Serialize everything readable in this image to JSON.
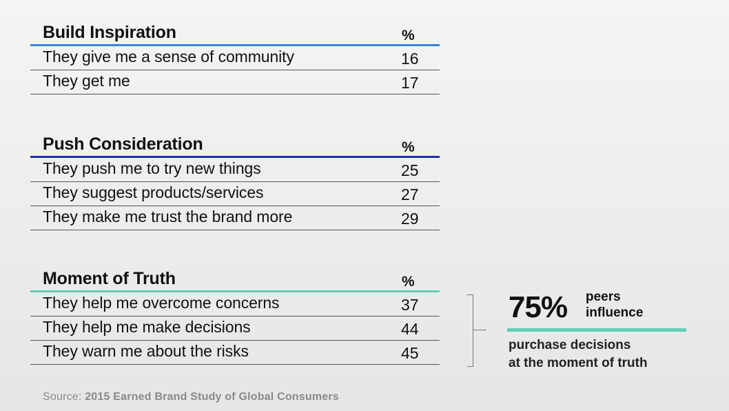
{
  "sections": [
    {
      "title": "Build Inspiration",
      "pct_header": "%",
      "accent": "#3d82d8",
      "rows": [
        {
          "label": "They give me a sense of community",
          "value": "16"
        },
        {
          "label": "They get me",
          "value": "17"
        }
      ]
    },
    {
      "title": "Push Consideration",
      "pct_header": "%",
      "accent": "#1f2ea0",
      "rows": [
        {
          "label": "They push me to try new things",
          "value": "25"
        },
        {
          "label": "They suggest products/services",
          "value": "27"
        },
        {
          "label": "They make me trust the brand more",
          "value": "29"
        }
      ]
    },
    {
      "title": "Moment of Truth",
      "pct_header": "%",
      "accent": "#5fd0b4",
      "rows": [
        {
          "label": "They help me overcome concerns",
          "value": "37"
        },
        {
          "label": "They help me make decisions",
          "value": "44"
        },
        {
          "label": "They warn me about the risks",
          "value": "45"
        }
      ]
    }
  ],
  "callout": {
    "big": "75%",
    "line1": "peers",
    "line2": "influence",
    "sub1": "purchase decisions",
    "sub2": "at the moment of truth"
  },
  "source": {
    "prefix": "Source:",
    "text": "2015 Earned Brand Study of Global Consumers"
  }
}
